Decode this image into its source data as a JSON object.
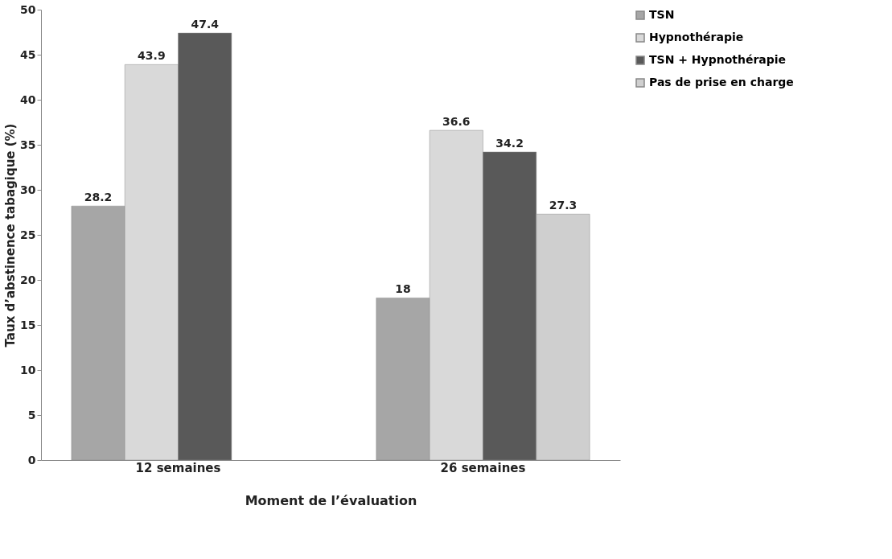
{
  "chart_data": {
    "type": "bar",
    "xlabel": "Moment de l’évaluation",
    "ylabel": "Taux d’abstinence tabagique (%)",
    "categories": [
      "12 semaines",
      "26 semaines"
    ],
    "series": [
      {
        "name": "TSN",
        "color": "#a6a6a6",
        "values": [
          28.2,
          18
        ]
      },
      {
        "name": "Hypnothérapie",
        "color": "#d9d9d9",
        "values": [
          43.9,
          36.6
        ]
      },
      {
        "name": "TSN + Hypnothérapie",
        "color": "#595959",
        "values": [
          47.4,
          34.2
        ]
      },
      {
        "name": "Pas de prise en charge",
        "color": "#cfcfcf",
        "values": [
          null,
          27.3
        ]
      }
    ],
    "ylim": [
      0,
      50
    ],
    "yticks": [
      0,
      5,
      10,
      15,
      20,
      25,
      30,
      35,
      40,
      45,
      50
    ],
    "grid": false,
    "legend": "right",
    "data_labels": true
  }
}
